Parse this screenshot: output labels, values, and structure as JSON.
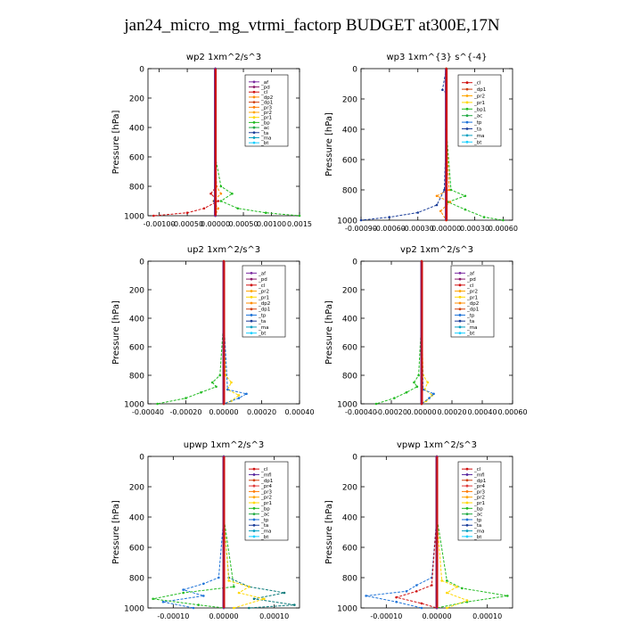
{
  "title": "jan24_micro_mg_vtrmi_factorp  BUDGET at300E,17N",
  "chart_data": [
    {
      "type": "line",
      "title": "wp2   1xm^2/s^3",
      "ylabel": "Pressure [hPa]",
      "ylim": [
        1000,
        0
      ],
      "xlim": [
        -0.0012,
        0.0015
      ],
      "xticks": [
        "-0.00100",
        "-0.00050",
        "0.00000",
        "0.00050",
        "0.00100",
        "0.0015"
      ],
      "xtick_values": [
        -0.001,
        -0.0005,
        0,
        0.0005,
        0.001,
        0.0015
      ],
      "yticks": [
        0,
        200,
        400,
        600,
        800,
        1000
      ],
      "legend": {
        "position": "top-right",
        "entries": [
          "_af",
          "_pd",
          "_cl",
          "_dp2",
          "_dp1",
          "_pr3",
          "_pr2",
          "_pr1",
          "_bp",
          "_ac",
          "_ta",
          "_ma",
          "_bt"
        ]
      },
      "series": [
        {
          "name": "_pd",
          "color": "#d01010",
          "pressure": [
            0,
            200,
            400,
            600,
            800,
            850,
            900,
            950,
            980,
            1000
          ],
          "values": [
            0,
            0,
            0,
            0,
            2e-05,
            -8e-05,
            5e-05,
            -0.0002,
            -0.0005,
            -0.0011
          ]
        },
        {
          "name": "_bp",
          "color": "#22bb22",
          "pressure": [
            0,
            200,
            400,
            600,
            800,
            850,
            900,
            950,
            980,
            1000
          ],
          "values": [
            0,
            0,
            0,
            0,
            0.0001,
            0.0003,
            0.0001,
            0.0004,
            0.0009,
            0.0015
          ]
        },
        {
          "name": "_dp2",
          "color": "#ff8c00",
          "pressure": [
            0,
            400,
            800,
            850,
            900,
            950,
            1000
          ],
          "values": [
            0,
            0,
            2e-05,
            0.0001,
            -3e-05,
            5e-05,
            0
          ]
        },
        {
          "name": "_ta",
          "color": "#1a3d99",
          "pressure": [
            0,
            400,
            800,
            900,
            1000
          ],
          "values": [
            0,
            0,
            0,
            -2e-05,
            0
          ]
        },
        {
          "name": "_af",
          "color": "#7a2aa0",
          "pressure": [
            0,
            200,
            400,
            600,
            800,
            1000
          ],
          "values": [
            0,
            0,
            0,
            0,
            0,
            0
          ]
        }
      ]
    },
    {
      "type": "line",
      "title": "wp3   1xm^{3} s^{-4}",
      "ylabel": "Pressure [hPa]",
      "ylim": [
        1000,
        0
      ],
      "xlim": [
        -0.0009,
        0.0007
      ],
      "xticks": [
        "-0.00090",
        "-0.00060",
        "-0.00030",
        "0.00000",
        "0.00030",
        "0.00060"
      ],
      "xtick_values": [
        -0.0009,
        -0.0006,
        -0.0003,
        0,
        0.0003,
        0.0006
      ],
      "yticks": [
        0,
        200,
        400,
        600,
        800,
        1000
      ],
      "legend": {
        "position": "top-right",
        "entries": [
          "_cl",
          "_dp1",
          "_pr2",
          "_pr1",
          "_bp1",
          "_ac",
          "_tp",
          "_ta",
          "_ma",
          "_bt"
        ]
      },
      "series": [
        {
          "name": "_ta",
          "color": "#1a3d99",
          "pressure": [
            0,
            140,
            160,
            400,
            800,
            900,
            950,
            980,
            1000
          ],
          "values": [
            0,
            -4e-05,
            0,
            0,
            -2e-05,
            -0.0001,
            -0.0003,
            -0.0006,
            -0.0009
          ]
        },
        {
          "name": "_bp1",
          "color": "#22bb22",
          "pressure": [
            0,
            400,
            800,
            840,
            880,
            930,
            980,
            1000
          ],
          "values": [
            0,
            0,
            5e-05,
            0.0002,
            2e-05,
            0.0002,
            0.0004,
            0.0006
          ]
        },
        {
          "name": "_pr2",
          "color": "#ff8c00",
          "pressure": [
            0,
            400,
            800,
            840,
            880,
            940,
            1000
          ],
          "values": [
            0,
            0,
            3e-05,
            -0.0001,
            4e-05,
            -6e-05,
            0
          ]
        },
        {
          "name": "_dp1",
          "color": "#d01010",
          "pressure": [
            0,
            200,
            400,
            600,
            800,
            1000
          ],
          "values": [
            0,
            0,
            0,
            0,
            0,
            0
          ]
        }
      ]
    },
    {
      "type": "line",
      "title": "up2   1xm^2/s^3",
      "ylabel": "Pressure [hPa]",
      "ylim": [
        1000,
        0
      ],
      "xlim": [
        -0.0004,
        0.0004
      ],
      "xticks": [
        "-0.00040",
        "-0.00020",
        "0.00000",
        "0.00020",
        "0.00040"
      ],
      "xtick_values": [
        -0.0004,
        -0.0002,
        0,
        0.0002,
        0.0004
      ],
      "yticks": [
        0,
        200,
        400,
        600,
        800,
        1000
      ],
      "legend": {
        "position": "top-right",
        "entries": [
          "_af",
          "_pd",
          "_cl",
          "_pr2",
          "_pr1",
          "_dp2",
          "_dp1",
          "_tp",
          "_ta",
          "_ma",
          "_bt"
        ]
      },
      "series": [
        {
          "name": "_dp1",
          "color": "#22bb22",
          "pressure": [
            0,
            400,
            800,
            850,
            880,
            920,
            960,
            1000
          ],
          "values": [
            0,
            0,
            -2e-05,
            -6e-05,
            -4e-05,
            -0.00012,
            -0.0002,
            -0.00035
          ]
        },
        {
          "name": "_pr2",
          "color": "#ffd700",
          "pressure": [
            0,
            400,
            800,
            850,
            900,
            940,
            980,
            1000
          ],
          "values": [
            0,
            0,
            1e-05,
            4e-05,
            2e-05,
            8e-05,
            4e-05,
            0
          ]
        },
        {
          "name": "_tp",
          "color": "#1e73d8",
          "pressure": [
            0,
            400,
            900,
            930,
            960,
            1000
          ],
          "values": [
            0,
            0,
            2e-05,
            0.00012,
            8e-05,
            0
          ]
        },
        {
          "name": "_pd",
          "color": "#d01010",
          "pressure": [
            0,
            200,
            400,
            600,
            800,
            1000
          ],
          "values": [
            0,
            0,
            0,
            0,
            0,
            0
          ]
        }
      ]
    },
    {
      "type": "line",
      "title": "vp2   1xm^2/s^3",
      "ylabel": "Pressure [hPa]",
      "ylim": [
        1000,
        0
      ],
      "xlim": [
        -0.0004,
        0.0006
      ],
      "xticks": [
        "-0.00040",
        "-0.00020",
        "0.00000",
        "0.00020",
        "0.00040",
        "0.00060"
      ],
      "xtick_values": [
        -0.0004,
        -0.0002,
        0,
        0.0002,
        0.0004,
        0.0006
      ],
      "yticks": [
        0,
        200,
        400,
        600,
        800,
        1000
      ],
      "legend": {
        "position": "top-right",
        "entries": [
          "_af",
          "_pd",
          "_cl",
          "_pr2",
          "_pr1",
          "_dp2",
          "_dp1",
          "_tp",
          "_ta",
          "_ma",
          "_bt"
        ]
      },
      "series": [
        {
          "name": "_dp1",
          "color": "#22bb22",
          "pressure": [
            0,
            400,
            800,
            850,
            880,
            920,
            960,
            1000
          ],
          "values": [
            0,
            0,
            -2e-05,
            -5e-05,
            -3e-05,
            -0.0001,
            -0.00018,
            -0.0003
          ]
        },
        {
          "name": "_pr2",
          "color": "#ffd700",
          "pressure": [
            0,
            400,
            800,
            850,
            900,
            940,
            980,
            1000
          ],
          "values": [
            0,
            0,
            1e-05,
            4e-05,
            2e-05,
            7e-05,
            3e-05,
            0
          ]
        },
        {
          "name": "_tp",
          "color": "#1e73d8",
          "pressure": [
            0,
            400,
            900,
            930,
            960,
            1000
          ],
          "values": [
            0,
            0,
            1e-05,
            8e-05,
            5e-05,
            0
          ]
        },
        {
          "name": "_pd",
          "color": "#d01010",
          "pressure": [
            0,
            200,
            400,
            600,
            800,
            1000
          ],
          "values": [
            0,
            0,
            0,
            0,
            0,
            0
          ]
        }
      ]
    },
    {
      "type": "line",
      "title": "upwp   1xm^2/s^3",
      "ylabel": "Pressure [hPa]",
      "ylim": [
        1000,
        0
      ],
      "xlim": [
        -0.00015,
        0.00015
      ],
      "xticks": [
        "-0.00010",
        "0.00000",
        "0.00010"
      ],
      "xtick_values": [
        -0.0001,
        0,
        0.0001
      ],
      "yticks": [
        0,
        200,
        400,
        600,
        800,
        1000
      ],
      "legend": {
        "position": "top-right",
        "entries": [
          "_cl",
          "_mfl",
          "_dp1",
          "_pr4",
          "_pr3",
          "_pr2",
          "_pr1",
          "_bp",
          "_ac",
          "_tp",
          "_ta",
          "_ma",
          "_bt"
        ]
      },
      "series": [
        {
          "name": "_tp",
          "color": "#1e73d8",
          "pressure": [
            0,
            400,
            800,
            840,
            880,
            920,
            960,
            1000
          ],
          "values": [
            0,
            0,
            -1e-05,
            -4e-05,
            -8e-05,
            -4e-05,
            -0.00012,
            -6e-05
          ]
        },
        {
          "name": "_ta",
          "color": "#0a7a7a",
          "pressure": [
            0,
            400,
            800,
            860,
            900,
            940,
            980,
            1000
          ],
          "values": [
            0,
            0,
            1e-05,
            5e-05,
            0.00012,
            6e-05,
            0.00014,
            5e-05
          ]
        },
        {
          "name": "_bp",
          "color": "#22bb22",
          "pressure": [
            0,
            400,
            860,
            900,
            940,
            980,
            1000
          ],
          "values": [
            0,
            0,
            2e-05,
            -8e-05,
            -0.00014,
            -5e-05,
            0
          ]
        },
        {
          "name": "_pr1",
          "color": "#ffd700",
          "pressure": [
            0,
            400,
            820,
            860,
            900,
            940,
            1000
          ],
          "values": [
            0,
            0,
            1e-05,
            5e-05,
            3e-05,
            8e-05,
            2e-05
          ]
        },
        {
          "name": "_mfl",
          "color": "#7a2aa0",
          "pressure": [
            0,
            200,
            400,
            600,
            800,
            1000
          ],
          "values": [
            0,
            0,
            0,
            0,
            0,
            0
          ]
        }
      ]
    },
    {
      "type": "line",
      "title": "vpwp   1xm^2/s^3",
      "ylabel": "Pressure [hPa]",
      "ylim": [
        1000,
        0
      ],
      "xlim": [
        -0.00015,
        0.00015
      ],
      "xticks": [
        "-0.00010",
        "0.00000",
        "0.00010"
      ],
      "xtick_values": [
        -0.0001,
        0,
        0.0001
      ],
      "yticks": [
        0,
        200,
        400,
        600,
        800,
        1000
      ],
      "legend": {
        "position": "top-right",
        "entries": [
          "_cl",
          "_mfl",
          "_dp1",
          "_pr4",
          "_pr3",
          "_pr2",
          "_pr1",
          "_bp",
          "_ac",
          "_tp",
          "_ta",
          "_ma",
          "_bt"
        ]
      },
      "series": [
        {
          "name": "_tp",
          "color": "#1e73d8",
          "pressure": [
            0,
            400,
            800,
            850,
            890,
            920,
            960,
            1000
          ],
          "values": [
            0,
            0,
            -1e-05,
            -4e-05,
            -6e-05,
            -0.00014,
            -8e-05,
            -3e-05
          ]
        },
        {
          "name": "_bp",
          "color": "#22bb22",
          "pressure": [
            0,
            400,
            820,
            870,
            920,
            960,
            1000
          ],
          "values": [
            0,
            0,
            2e-05,
            5e-05,
            0.00014,
            6e-05,
            0
          ]
        },
        {
          "name": "_pr3",
          "color": "#d01010",
          "pressure": [
            0,
            400,
            850,
            890,
            930,
            970,
            1000
          ],
          "values": [
            0,
            0,
            -1e-05,
            -4e-05,
            -8e-05,
            -3e-05,
            0
          ]
        },
        {
          "name": "_pr1",
          "color": "#ffd700",
          "pressure": [
            0,
            400,
            820,
            860,
            900,
            950,
            1000
          ],
          "values": [
            0,
            0,
            1e-05,
            4e-05,
            2e-05,
            6e-05,
            2e-05
          ]
        },
        {
          "name": "_mfl",
          "color": "#7a2aa0",
          "pressure": [
            0,
            200,
            400,
            600,
            800,
            1000
          ],
          "values": [
            0,
            0,
            0,
            0,
            0,
            0
          ]
        }
      ]
    }
  ]
}
